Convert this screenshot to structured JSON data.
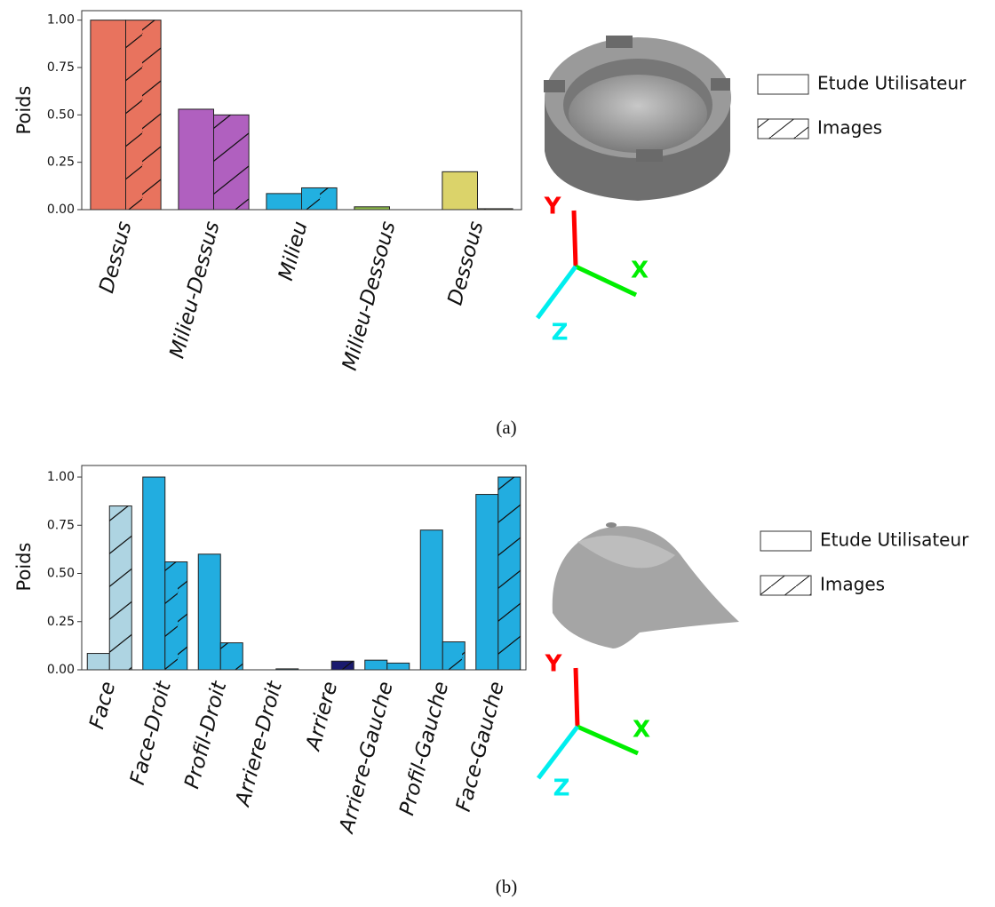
{
  "chart_data": [
    {
      "type": "bar",
      "ylabel": "Poids",
      "caption": "(a)",
      "categories": [
        "Dessus",
        "Milieu-Dessus",
        "Milieu",
        "Milieu-Dessous",
        "Dessous"
      ],
      "colors": [
        "#e8735e",
        "#b060bf",
        "#22b0e0",
        "#8db94a",
        "#dbd36a"
      ],
      "series": [
        {
          "name": "Etude Utilisateur",
          "hatch": false,
          "values": [
            1.0,
            0.53,
            0.085,
            0.015,
            0.2
          ]
        },
        {
          "name": "Images",
          "hatch": true,
          "values": [
            1.0,
            0.5,
            0.115,
            0.0,
            0.005
          ]
        }
      ],
      "ylim": [
        0,
        1.05
      ],
      "yticks": [
        {
          "value": 0,
          "label": "0.00"
        },
        {
          "value": 0.25,
          "label": "0.25"
        },
        {
          "value": 0.5,
          "label": "0.50"
        },
        {
          "value": 0.75,
          "label": "0.75"
        },
        {
          "value": 1,
          "label": "1.00"
        }
      ],
      "axis_names": [
        "Y",
        "X",
        "Z"
      ]
    },
    {
      "type": "bar",
      "ylabel": "Poids",
      "caption": "(b)",
      "categories": [
        "Face",
        "Face-Droit",
        "Profil-Droit",
        "Arriere-Droit",
        "Arriere",
        "Arriere-Gauche",
        "Profil-Gauche",
        "Face-Gauche"
      ],
      "colors": [
        "#aed4e2",
        "#22ade0",
        "#22ade0",
        "#22ade0",
        "#1a1a6e",
        "#22ade0",
        "#22ade0",
        "#22ade0"
      ],
      "series": [
        {
          "name": "Etude Utilisateur",
          "hatch": false,
          "values": [
            0.085,
            1.0,
            0.6,
            0.0,
            0.0,
            0.05,
            0.725,
            0.91
          ]
        },
        {
          "name": "Images",
          "hatch": true,
          "values": [
            0.85,
            0.56,
            0.14,
            0.005,
            0.045,
            0.035,
            0.145,
            1.0
          ]
        }
      ],
      "ylim": [
        0,
        1.06
      ],
      "yticks": [
        {
          "value": 0,
          "label": "0.00"
        },
        {
          "value": 0.25,
          "label": "0.25"
        },
        {
          "value": 0.5,
          "label": "0.50"
        },
        {
          "value": 0.75,
          "label": "0.75"
        },
        {
          "value": 1,
          "label": "1.00"
        }
      ],
      "axis_names": [
        "Y",
        "X",
        "Z"
      ]
    }
  ]
}
